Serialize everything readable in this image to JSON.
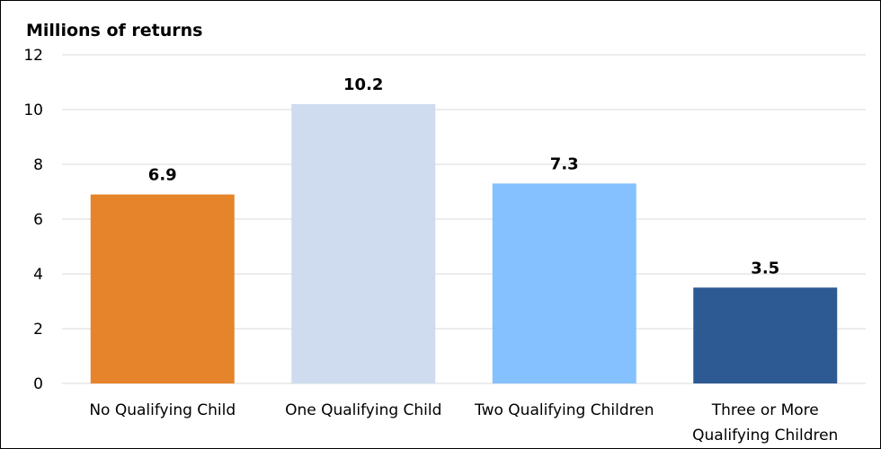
{
  "chart_data": {
    "type": "bar",
    "ylabel": "Millions of returns",
    "ylim": [
      0,
      12
    ],
    "yticks": [
      "0",
      "2",
      "4",
      "6",
      "8",
      "10",
      "12"
    ],
    "grid": true,
    "categories": [
      [
        "No Qualifying Child"
      ],
      [
        "One Qualifying Child"
      ],
      [
        "Two Qualifying Children"
      ],
      [
        "Three or More",
        "Qualifying Children"
      ]
    ],
    "values": [
      6.9,
      10.2,
      7.3,
      3.5
    ],
    "data_labels": [
      "6.9",
      "10.2",
      "7.3",
      "3.5"
    ],
    "colors": [
      "#e5842a",
      "#cfdcef",
      "#85c1ff",
      "#2e5a94"
    ]
  }
}
